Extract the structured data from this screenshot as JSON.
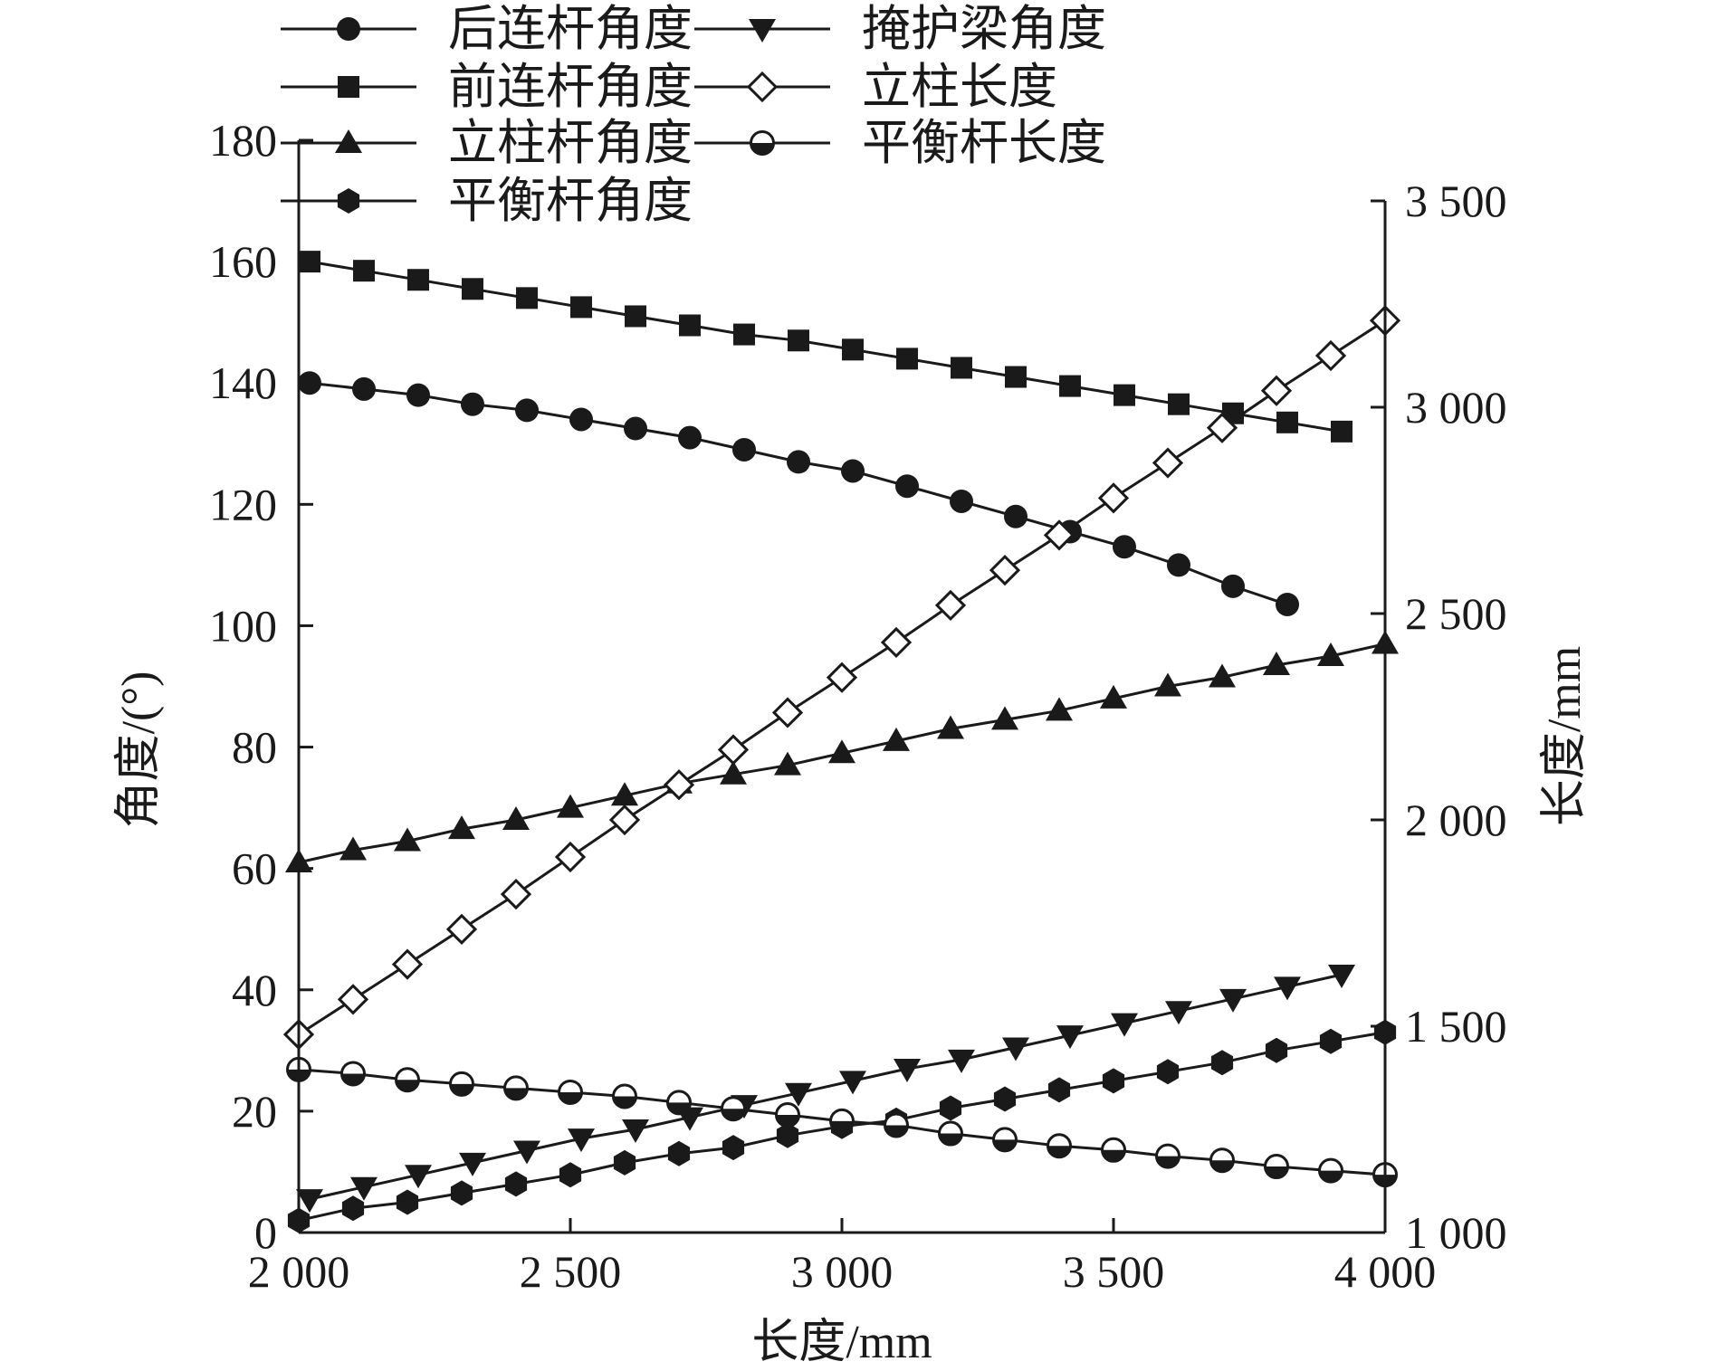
{
  "chart_data": {
    "type": "line",
    "xlabel": "长度/mm",
    "ylabel_left": "角度/(°)",
    "ylabel_right": "长度/mm",
    "xlim": [
      2000,
      4000
    ],
    "ylim_left": [
      0,
      180
    ],
    "ylim_right": [
      1000,
      3500
    ],
    "x_ticks": [
      2000,
      2500,
      3000,
      3500,
      4000
    ],
    "x_tick_labels": [
      "2 000",
      "2 500",
      "3 000",
      "3 500",
      "4 000"
    ],
    "y_left_ticks": [
      0,
      20,
      40,
      60,
      80,
      100,
      120,
      140,
      160,
      180
    ],
    "y_left_tick_labels": [
      "0",
      "20",
      "40",
      "60",
      "80",
      "100",
      "120",
      "140",
      "160",
      "180"
    ],
    "y_right_ticks": [
      1000,
      1500,
      2000,
      2500,
      3000,
      3500
    ],
    "y_right_tick_labels": [
      "1 000",
      "1 500",
      "2 000",
      "2 500",
      "3 000",
      "3 500"
    ],
    "grid": false,
    "legend_position": "top",
    "series": [
      {
        "name": "后连杆角度",
        "axis": "left",
        "marker": "circle",
        "x": [
          2020,
          2120,
          2220,
          2320,
          2420,
          2520,
          2620,
          2720,
          2820,
          2920,
          3020,
          3120,
          3220,
          3320,
          3420,
          3520,
          3620,
          3720,
          3820
        ],
        "values": [
          140,
          139,
          138,
          136.5,
          135.5,
          134,
          132.5,
          131,
          129,
          127,
          125.5,
          123,
          120.5,
          118,
          115.5,
          113,
          110,
          106.5,
          103.5
        ]
      },
      {
        "name": "前连杆角度",
        "axis": "left",
        "marker": "square",
        "x": [
          2020,
          2120,
          2220,
          2320,
          2420,
          2520,
          2620,
          2720,
          2820,
          2920,
          3020,
          3120,
          3220,
          3320,
          3420,
          3520,
          3620,
          3720,
          3820,
          3920
        ],
        "values": [
          160,
          158.5,
          157,
          155.5,
          154,
          152.5,
          151,
          149.5,
          148,
          147,
          145.5,
          144,
          142.5,
          141,
          139.5,
          138,
          136.5,
          135,
          133.5,
          132
        ]
      },
      {
        "name": "立柱杆角度",
        "axis": "left",
        "marker": "triangle-up",
        "x": [
          2000,
          2100,
          2200,
          2300,
          2400,
          2500,
          2600,
          2700,
          2800,
          2900,
          3000,
          3100,
          3200,
          3300,
          3400,
          3500,
          3600,
          3700,
          3800,
          3900,
          4000
        ],
        "values": [
          61,
          63,
          64.5,
          66.5,
          68,
          70,
          72,
          74,
          75.5,
          77,
          79,
          81,
          83,
          84.5,
          86,
          88,
          90,
          91.5,
          93.5,
          95,
          97
        ]
      },
      {
        "name": "平衡杆角度",
        "axis": "left",
        "marker": "hexagon",
        "x": [
          2000,
          2100,
          2200,
          2300,
          2400,
          2500,
          2600,
          2700,
          2800,
          2900,
          3000,
          3100,
          3200,
          3300,
          3400,
          3500,
          3600,
          3700,
          3800,
          3900,
          4000
        ],
        "values": [
          2,
          4,
          5,
          6.5,
          8,
          9.5,
          11.5,
          13,
          14,
          16,
          17.5,
          18.5,
          20.5,
          22,
          23.5,
          25,
          26.5,
          28,
          30,
          31.5,
          33
        ]
      },
      {
        "name": "掩护梁角度",
        "axis": "left",
        "marker": "triangle-down",
        "x": [
          2020,
          2120,
          2220,
          2320,
          2420,
          2520,
          2620,
          2720,
          2820,
          2920,
          3020,
          3120,
          3220,
          3320,
          3420,
          3520,
          3620,
          3720,
          3820,
          3920
        ],
        "values": [
          5.5,
          7.5,
          9.5,
          11.5,
          13.5,
          15.5,
          17,
          19,
          21,
          23,
          25,
          27,
          28.5,
          30.5,
          32.5,
          34.5,
          36.5,
          38.5,
          40.5,
          42.5
        ]
      },
      {
        "name": "立柱长度",
        "axis": "right",
        "marker": "diamond-open",
        "x": [
          2000,
          2100,
          2200,
          2300,
          2400,
          2500,
          2600,
          2700,
          2800,
          2900,
          3000,
          3100,
          3200,
          3300,
          3400,
          3500,
          3600,
          3700,
          3800,
          3900,
          4000
        ],
        "values": [
          1480,
          1565,
          1650,
          1735,
          1820,
          1910,
          2000,
          2085,
          2170,
          2260,
          2345,
          2430,
          2520,
          2605,
          2690,
          2780,
          2865,
          2950,
          3040,
          3125,
          3210
        ]
      },
      {
        "name": "平衡杆长度",
        "axis": "right",
        "marker": "circle-half",
        "x": [
          2000,
          2100,
          2200,
          2300,
          2400,
          2500,
          2600,
          2700,
          2800,
          2900,
          3000,
          3100,
          3200,
          3300,
          3400,
          3500,
          3600,
          3700,
          3800,
          3900,
          4000
        ],
        "values": [
          1395,
          1385,
          1370,
          1360,
          1350,
          1340,
          1330,
          1315,
          1300,
          1285,
          1270,
          1260,
          1240,
          1225,
          1210,
          1200,
          1185,
          1175,
          1160,
          1150,
          1140
        ]
      }
    ],
    "legend": [
      {
        "series": 0,
        "column": 0,
        "row": 0
      },
      {
        "series": 1,
        "column": 0,
        "row": 1
      },
      {
        "series": 2,
        "column": 0,
        "row": 2
      },
      {
        "series": 3,
        "column": 0,
        "row": 3
      },
      {
        "series": 4,
        "column": 1,
        "row": 0
      },
      {
        "series": 5,
        "column": 1,
        "row": 1
      },
      {
        "series": 6,
        "column": 1,
        "row": 2
      }
    ]
  }
}
